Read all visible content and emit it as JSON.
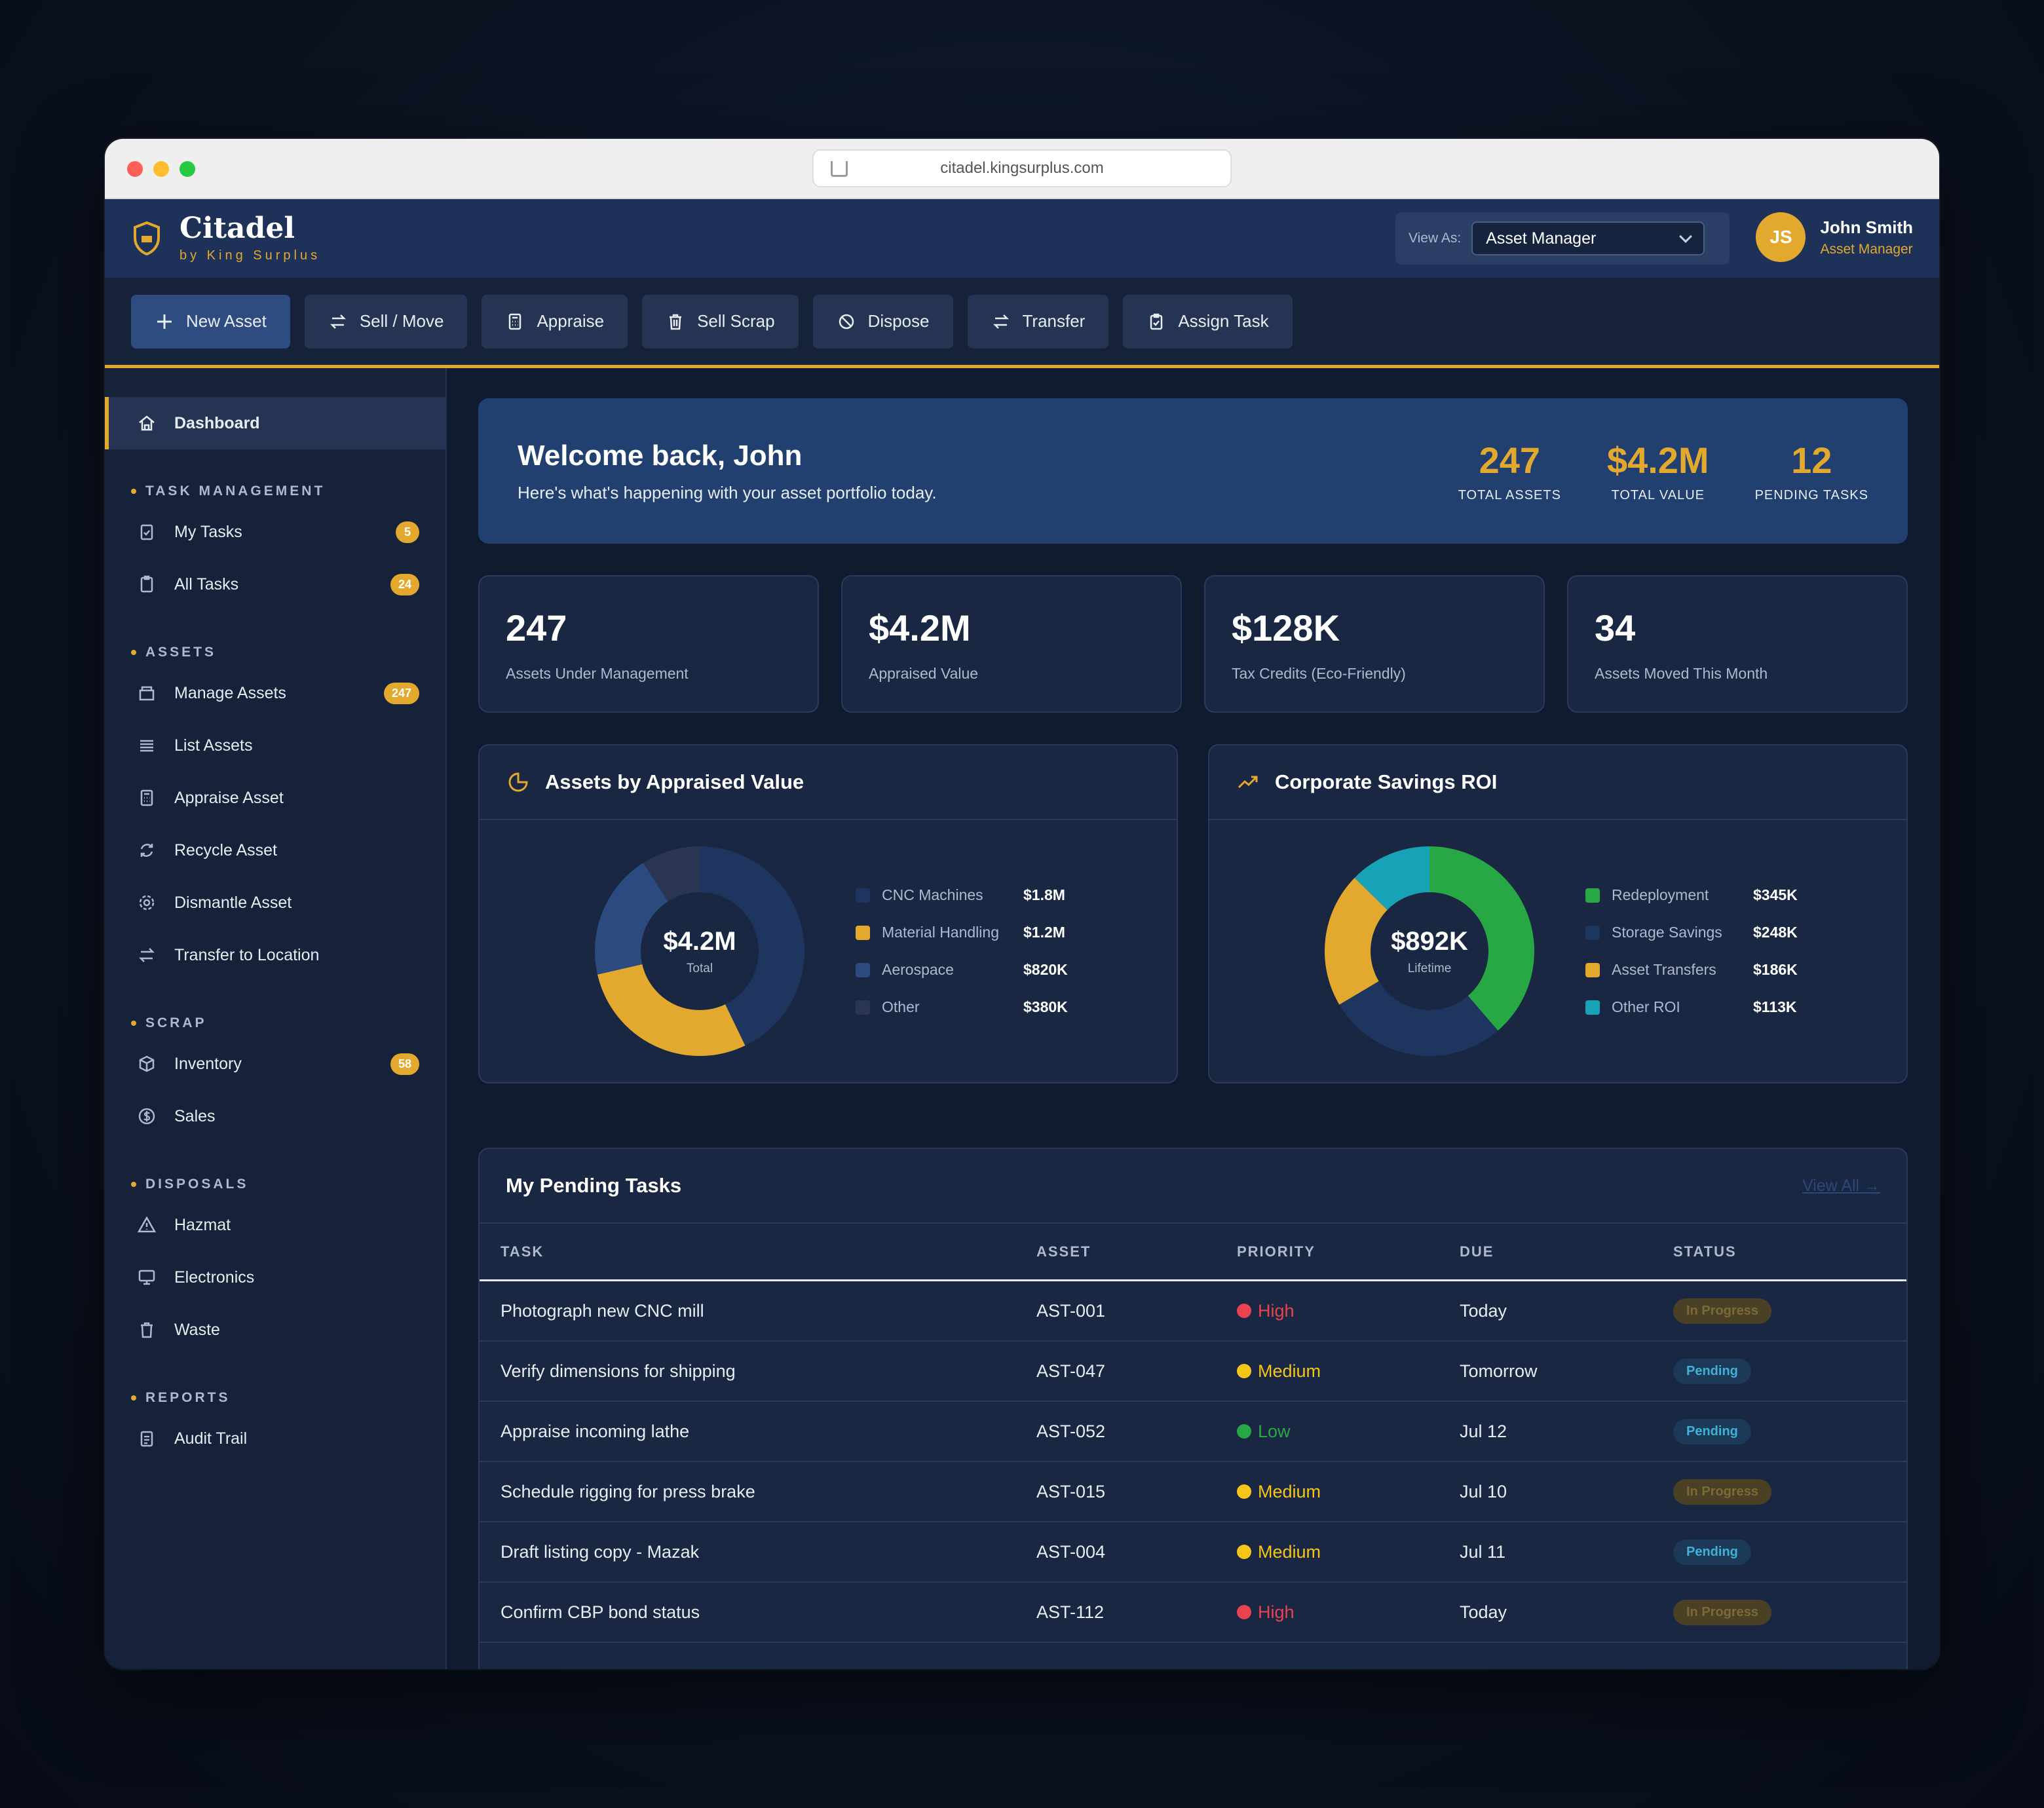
{
  "browser": {
    "url": "citadel.kingsurplus.com"
  },
  "brand": {
    "title": "Citadel",
    "subtitle": "by King Surplus"
  },
  "view_as": {
    "label": "View As:",
    "value": "Asset Manager"
  },
  "user": {
    "initials": "JS",
    "name": "John Smith",
    "role": "Asset Manager"
  },
  "toolbar": [
    {
      "label": "New Asset",
      "icon": "plus-icon"
    },
    {
      "label": "Sell / Move",
      "icon": "swap-icon"
    },
    {
      "label": "Appraise",
      "icon": "calculator-icon"
    },
    {
      "label": "Sell Scrap",
      "icon": "trash-icon"
    },
    {
      "label": "Dispose",
      "icon": "ban-icon"
    },
    {
      "label": "Transfer",
      "icon": "swap-icon"
    },
    {
      "label": "Assign Task",
      "icon": "clipboard-check-icon"
    }
  ],
  "sidebar": {
    "dashboard": "Dashboard",
    "sections": [
      {
        "title": "TASK MANAGEMENT",
        "items": [
          {
            "label": "My Tasks",
            "icon": "clipboard-check-icon",
            "badge": "5"
          },
          {
            "label": "All Tasks",
            "icon": "clipboard-icon",
            "badge": "24"
          }
        ]
      },
      {
        "title": "ASSETS",
        "items": [
          {
            "label": "Manage Assets",
            "icon": "box-icon",
            "badge": "247"
          },
          {
            "label": "List Assets",
            "icon": "list-icon"
          },
          {
            "label": "Appraise Asset",
            "icon": "calculator-icon"
          },
          {
            "label": "Recycle Asset",
            "icon": "recycle-icon"
          },
          {
            "label": "Dismantle Asset",
            "icon": "gear-icon"
          },
          {
            "label": "Transfer to Location",
            "icon": "swap-icon"
          }
        ]
      },
      {
        "title": "SCRAP",
        "items": [
          {
            "label": "Inventory",
            "icon": "cube-icon",
            "badge": "58"
          },
          {
            "label": "Sales",
            "icon": "dollar-icon"
          }
        ]
      },
      {
        "title": "DISPOSALS",
        "items": [
          {
            "label": "Hazmat",
            "icon": "warning-icon"
          },
          {
            "label": "Electronics",
            "icon": "monitor-icon"
          },
          {
            "label": "Waste",
            "icon": "trash-icon"
          }
        ]
      },
      {
        "title": "REPORTS",
        "items": [
          {
            "label": "Audit Trail",
            "icon": "clipboard-list-icon"
          }
        ]
      }
    ]
  },
  "welcome": {
    "title": "Welcome back, John",
    "subtitle": "Here's what's happening with your asset portfolio today.",
    "stats": [
      {
        "value": "247",
        "label": "TOTAL ASSETS"
      },
      {
        "value": "$4.2M",
        "label": "TOTAL VALUE"
      },
      {
        "value": "12",
        "label": "PENDING TASKS"
      }
    ]
  },
  "kpis": [
    {
      "value": "247",
      "label": "Assets Under Management"
    },
    {
      "value": "$4.2M",
      "label": "Appraised Value"
    },
    {
      "value": "$128K",
      "label": "Tax Credits (Eco-Friendly)"
    },
    {
      "value": "34",
      "label": "Assets Moved This Month"
    }
  ],
  "chart_data": [
    {
      "type": "pie",
      "title": "Assets by Appraised Value",
      "center_value": "$4.2M",
      "center_label": "Total",
      "categories": [
        "CNC Machines",
        "Material Handling",
        "Aerospace",
        "Other"
      ],
      "values": [
        1.8,
        1.2,
        0.82,
        0.38
      ],
      "value_labels": [
        "$1.8M",
        "$1.2M",
        "$820K",
        "$380K"
      ],
      "colors": [
        "#1e3560",
        "#e3a92f",
        "#2c4a7e",
        "#2a3552"
      ],
      "legend": "right"
    },
    {
      "type": "pie",
      "title": "Corporate Savings ROI",
      "center_value": "$892K",
      "center_label": "Lifetime",
      "categories": [
        "Redeployment",
        "Storage Savings",
        "Asset Transfers",
        "Other ROI"
      ],
      "values": [
        345,
        248,
        186,
        113
      ],
      "value_labels": [
        "$345K",
        "$248K",
        "$186K",
        "$113K"
      ],
      "colors": [
        "#28a745",
        "#1e3560",
        "#e3a92f",
        "#17a2b8"
      ],
      "legend": "right"
    }
  ],
  "tasks": {
    "title": "My Pending Tasks",
    "view_all": "View All →",
    "columns": [
      "TASK",
      "ASSET",
      "PRIORITY",
      "DUE",
      "STATUS"
    ],
    "rows": [
      {
        "task": "Photograph new CNC mill",
        "asset": "AST-001",
        "priority": "High",
        "due": "Today",
        "status": "In Progress"
      },
      {
        "task": "Verify dimensions for shipping",
        "asset": "AST-047",
        "priority": "Medium",
        "due": "Tomorrow",
        "status": "Pending"
      },
      {
        "task": "Appraise incoming lathe",
        "asset": "AST-052",
        "priority": "Low",
        "due": "Jul 12",
        "status": "Pending"
      },
      {
        "task": "Schedule rigging for press brake",
        "asset": "AST-015",
        "priority": "Medium",
        "due": "Jul 10",
        "status": "In Progress"
      },
      {
        "task": "Draft listing copy - Mazak",
        "asset": "AST-004",
        "priority": "Medium",
        "due": "Jul 11",
        "status": "Pending"
      },
      {
        "task": "Confirm CBP bond status",
        "asset": "AST-112",
        "priority": "High",
        "due": "Today",
        "status": "In Progress"
      }
    ]
  },
  "colors": {
    "accent": "#e3a92f",
    "priority_high": "#e8434f",
    "priority_medium": "#f5c518",
    "priority_low": "#28a745"
  }
}
